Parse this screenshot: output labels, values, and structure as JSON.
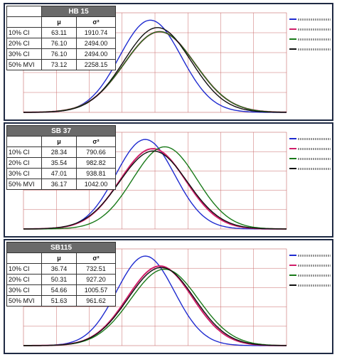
{
  "panels": [
    {
      "name": "HB 15",
      "mu_label": "μ",
      "var_label": "σ²",
      "rows": [
        {
          "label": "10% CI",
          "mu": "63.11",
          "var": "1910.74"
        },
        {
          "label": "20% CI",
          "mu": "76.10",
          "var": "2494.00"
        },
        {
          "label": "30% CI",
          "mu": "76.10",
          "var": "2494.00"
        },
        {
          "label": "50% MVI",
          "mu": "73.12",
          "var": "2258.15"
        }
      ]
    },
    {
      "name": "SB 37",
      "mu_label": "μ",
      "var_label": "σ²",
      "rows": [
        {
          "label": "10% CI",
          "mu": "28.34",
          "var": "790.66"
        },
        {
          "label": "20% CI",
          "mu": "35.54",
          "var": "982.82"
        },
        {
          "label": "30% CI",
          "mu": "47.01",
          "var": "938.81"
        },
        {
          "label": "50% MVI",
          "mu": "36.17",
          "var": "1042.00"
        }
      ]
    },
    {
      "name": "SB115",
      "mu_label": "μ",
      "var_label": "σ²",
      "rows": [
        {
          "label": "10% CI",
          "mu": "36.74",
          "var": "732.51"
        },
        {
          "label": "20% CI",
          "mu": "50.31",
          "var": "927.20"
        },
        {
          "label": "30% CI",
          "mu": "54.66",
          "var": "1005.57"
        },
        {
          "label": "50% MVI",
          "mu": "51.63",
          "var": "961.62"
        }
      ]
    }
  ],
  "colors": {
    "10% CI": "#1f2bd0",
    "20% CI": "#d01f6a",
    "30% CI": "#1a7a1a",
    "50% MVI": "#111111",
    "grid": "#c86a6a",
    "frame": "#1f2a44"
  },
  "chart_data": [
    {
      "type": "line",
      "series": [
        {
          "name": "10% CI",
          "mu": 63.11,
          "var": 1910.74
        },
        {
          "name": "20% CI",
          "mu": 76.1,
          "var": 2494.0
        },
        {
          "name": "30% CI",
          "mu": 76.1,
          "var": 2494.0
        },
        {
          "name": "50% MVI",
          "mu": 73.12,
          "var": 2258.15
        }
      ],
      "grid": true
    },
    {
      "type": "line",
      "series": [
        {
          "name": "10% CI",
          "mu": 28.34,
          "var": 790.66
        },
        {
          "name": "20% CI",
          "mu": 35.54,
          "var": 982.82
        },
        {
          "name": "30% CI",
          "mu": 47.01,
          "var": 938.81
        },
        {
          "name": "50% MVI",
          "mu": 36.17,
          "var": 1042.0
        }
      ],
      "grid": true
    },
    {
      "type": "line",
      "series": [
        {
          "name": "10% CI",
          "mu": 36.74,
          "var": 732.51
        },
        {
          "name": "20% CI",
          "mu": 50.31,
          "var": 927.2
        },
        {
          "name": "30% CI",
          "mu": 54.66,
          "var": 1005.57
        },
        {
          "name": "50% MVI",
          "mu": 51.63,
          "var": 961.62
        }
      ],
      "grid": true
    }
  ]
}
